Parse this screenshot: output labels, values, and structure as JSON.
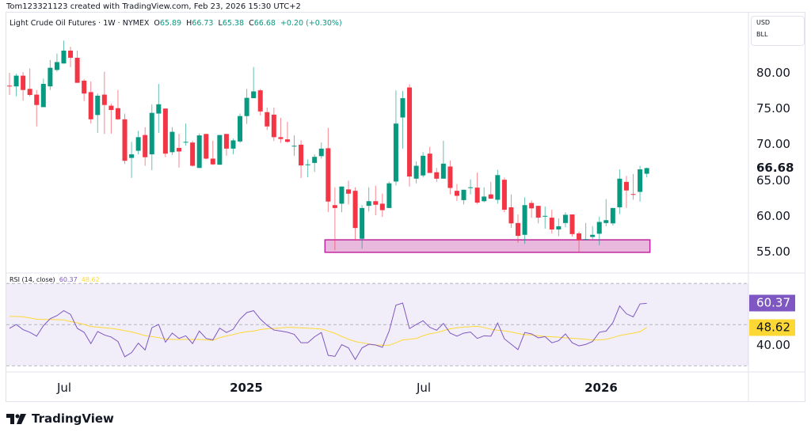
{
  "header": {
    "credit": "Tom123321123 created with TradingView.com, Feb 23, 2026 15:30 UTC+2",
    "symbol": "Light Crude Oil Futures · 1W · NYMEX",
    "o_label": "O",
    "o": "65.89",
    "h_label": "H",
    "h": "66.73",
    "l_label": "L",
    "l": "65.38",
    "c_label": "C",
    "c": "66.68",
    "change": "+0.20 (+0.30%)"
  },
  "unit_box": {
    "currency": "USD",
    "unit": "BLL"
  },
  "logo_text": "TradingView",
  "colors": {
    "up": "#089981",
    "down": "#f23645",
    "rsi": "#7e57c2",
    "rsi_ma": "#fdd835",
    "zone_fill": "#e9b9dd",
    "zone_border": "#c2269e"
  },
  "chart_data": [
    {
      "type": "candlestick",
      "interval": "1W",
      "price_ticks": [
        "80.00",
        "75.00",
        "70.00",
        "65.00",
        "60.00",
        "55.00"
      ],
      "current_price": "66.68",
      "time_labels": [
        "Jul",
        "2025",
        "Jul",
        "2026"
      ],
      "zone": {
        "top": 56.65,
        "bottom": 54.9,
        "from_candle": 48,
        "to_candle": 95
      },
      "ohlc": [
        [
          78.2,
          80,
          76.9,
          78.15
        ],
        [
          78.1,
          79.85,
          76.7,
          79.6
        ],
        [
          79.6,
          80.1,
          76.1,
          77.6
        ],
        [
          77.75,
          80.6,
          76.7,
          76.9
        ],
        [
          76.95,
          77.6,
          72.5,
          75.5
        ],
        [
          75.2,
          79.2,
          75.2,
          78.45
        ],
        [
          78.1,
          81.8,
          77.6,
          80.7
        ],
        [
          80.4,
          82.7,
          80.15,
          81.5
        ],
        [
          81.3,
          84.5,
          81.3,
          83.1
        ],
        [
          83.1,
          83.65,
          80.8,
          82.1
        ],
        [
          82.1,
          83.1,
          78.6,
          78.6
        ],
        [
          78.9,
          79.1,
          76.05,
          77.1
        ],
        [
          77.3,
          78.8,
          72.9,
          73.5
        ],
        [
          74.1,
          77.1,
          71.6,
          76.8
        ],
        [
          76.95,
          80.15,
          71.45,
          75.5
        ],
        [
          75.4,
          75.7,
          71.5,
          74.8
        ],
        [
          75.05,
          77.6,
          73.4,
          73.5
        ],
        [
          73.5,
          74.3,
          67.25,
          67.7
        ],
        [
          68.1,
          70.35,
          65.3,
          68.6
        ],
        [
          69.1,
          71.9,
          68.6,
          71.0
        ],
        [
          71.3,
          72.4,
          67.0,
          68.2
        ],
        [
          68.6,
          75.6,
          66.4,
          74.4
        ],
        [
          74.3,
          78.45,
          71.6,
          75.6
        ],
        [
          75.0,
          75.0,
          68.2,
          68.7
        ],
        [
          68.9,
          72.4,
          68.5,
          71.75
        ],
        [
          69.5,
          71.45,
          66.75,
          69.0
        ],
        [
          70.3,
          72.9,
          69.8,
          70.35
        ],
        [
          70.25,
          70.5,
          66.9,
          67.0
        ],
        [
          66.7,
          71.5,
          66.7,
          71.25
        ],
        [
          71.45,
          71.45,
          67.9,
          68.0
        ],
        [
          68.0,
          70.5,
          67.1,
          67.2
        ],
        [
          67.15,
          71.3,
          67.15,
          71.3
        ],
        [
          71.45,
          71.45,
          68.4,
          69.4
        ],
        [
          69.4,
          70.8,
          68.6,
          70.55
        ],
        [
          70.4,
          74.3,
          70.2,
          73.95
        ],
        [
          73.95,
          77.75,
          72.85,
          76.5
        ],
        [
          76.45,
          80.8,
          76.45,
          77.4
        ],
        [
          77.55,
          77.75,
          74.05,
          74.6
        ],
        [
          74.5,
          75.15,
          72.0,
          72.5
        ],
        [
          74.15,
          75.15,
          70.45,
          71.0
        ],
        [
          71.0,
          73.7,
          70.2,
          70.75
        ],
        [
          70.7,
          73.15,
          70.2,
          70.35
        ],
        [
          69.8,
          71.25,
          68.4,
          69.8
        ],
        [
          69.95,
          70.55,
          65.3,
          67.05
        ],
        [
          67.15,
          67.9,
          65.4,
          67.2
        ],
        [
          67.4,
          68.6,
          66.15,
          68.25
        ],
        [
          68.35,
          70.25,
          68.0,
          69.4
        ],
        [
          69.45,
          72.3,
          60.55,
          62.0
        ],
        [
          61.5,
          64.0,
          55.2,
          61.1
        ],
        [
          61.7,
          64.1,
          60.5,
          64.1
        ],
        [
          63.7,
          64.9,
          61.6,
          63.1
        ],
        [
          63.5,
          64.0,
          56.55,
          58.3
        ],
        [
          56.8,
          61.5,
          55.4,
          61.1
        ],
        [
          61.4,
          64.0,
          60.6,
          62.05
        ],
        [
          62.05,
          64.2,
          60.1,
          61.55
        ],
        [
          61.7,
          63.1,
          59.85,
          60.8
        ],
        [
          61.1,
          64.8,
          61.1,
          64.55
        ],
        [
          64.8,
          77.55,
          64.25,
          72.9
        ],
        [
          73.75,
          77.45,
          69.4,
          76.45
        ],
        [
          77.95,
          78.4,
          64.1,
          65.5
        ],
        [
          65.2,
          67.6,
          64.55,
          67.0
        ],
        [
          65.65,
          68.9,
          65.4,
          68.4
        ],
        [
          68.7,
          69.65,
          66.0,
          66.0
        ],
        [
          66.1,
          66.7,
          64.75,
          65.2
        ],
        [
          65.2,
          70.5,
          65.2,
          67.3
        ],
        [
          66.9,
          67.75,
          63.0,
          63.9
        ],
        [
          63.5,
          64.45,
          62.1,
          62.8
        ],
        [
          62.2,
          63.65,
          61.6,
          63.65
        ],
        [
          63.95,
          65.1,
          63.0,
          64.0
        ],
        [
          63.95,
          66.05,
          61.65,
          61.85
        ],
        [
          62.05,
          64.0,
          61.9,
          62.7
        ],
        [
          63.0,
          64.75,
          62.4,
          62.4
        ],
        [
          62.25,
          66.45,
          61.7,
          65.7
        ],
        [
          65.05,
          65.35,
          60.5,
          60.85
        ],
        [
          61.2,
          63.0,
          58.3,
          58.95
        ],
        [
          59.0,
          60.2,
          56.25,
          57.2
        ],
        [
          57.35,
          62.6,
          56.1,
          61.5
        ],
        [
          61.8,
          62.15,
          59.75,
          61.05
        ],
        [
          61.4,
          61.4,
          58.95,
          59.75
        ],
        [
          59.95,
          61.3,
          58.2,
          60.0
        ],
        [
          59.75,
          60.85,
          57.55,
          58.1
        ],
        [
          58.1,
          59.65,
          57.15,
          58.55
        ],
        [
          59.0,
          60.5,
          58.4,
          60.15
        ],
        [
          60.2,
          60.2,
          57.1,
          57.45
        ],
        [
          57.55,
          57.8,
          55.0,
          56.6
        ],
        [
          56.7,
          59.0,
          56.6,
          56.75
        ],
        [
          57.05,
          58.55,
          56.75,
          57.35
        ],
        [
          57.5,
          59.9,
          55.9,
          59.15
        ],
        [
          59.0,
          62.35,
          58.55,
          59.4
        ],
        [
          58.95,
          61.1,
          58.65,
          61.1
        ],
        [
          61.2,
          66.5,
          60.25,
          65.2
        ],
        [
          64.75,
          65.6,
          61.1,
          63.55
        ],
        [
          63.05,
          65.85,
          62.25,
          62.95
        ],
        [
          63.35,
          67.0,
          62.0,
          66.5
        ],
        [
          65.89,
          66.73,
          65.38,
          66.68
        ]
      ]
    },
    {
      "type": "line",
      "title": "RSI (14, close)",
      "rsi_value": "60.37",
      "ma_value": "48.62",
      "axis_label": "40.00",
      "bands": [
        30,
        50,
        70
      ],
      "series": [
        {
          "values": [
            48.2,
            50.1,
            47.6,
            46.3,
            44.4,
            49.5,
            52.9,
            54.4,
            56.8,
            55.0,
            48.2,
            46.3,
            40.8,
            46.7,
            45.0,
            44.0,
            41.8,
            34.4,
            36.4,
            41.0,
            37.7,
            48.5,
            50.1,
            41.5,
            45.9,
            43.3,
            44.6,
            40.8,
            46.9,
            43.3,
            42.6,
            48.3,
            46.2,
            47.8,
            52.7,
            55.9,
            56.8,
            52.7,
            49.7,
            47.4,
            46.9,
            46.3,
            45.3,
            41.2,
            41.2,
            44.1,
            46.2,
            35.1,
            34.6,
            40.3,
            38.7,
            33.1,
            38.7,
            40.5,
            40.1,
            39.0,
            46.9,
            59.5,
            60.5,
            48.1,
            50.1,
            51.9,
            48.7,
            47.3,
            50.6,
            45.9,
            44.4,
            45.9,
            46.4,
            43.3,
            44.6,
            44.4,
            50.8,
            43.1,
            40.5,
            37.9,
            46.2,
            45.5,
            43.6,
            44.2,
            41.2,
            42.2,
            45.5,
            41.2,
            39.7,
            40.4,
            41.8,
            46.3,
            46.9,
            51.0,
            59.1,
            55.3,
            53.8,
            60.1,
            60.37
          ]
        },
        {
          "values": [
            54.0,
            54.0,
            53.8,
            53.3,
            52.6,
            52.5,
            52.5,
            52.4,
            52.3,
            51.5,
            50.9,
            50.1,
            49.1,
            48.8,
            48.5,
            48.2,
            47.7,
            47.1,
            46.5,
            45.6,
            44.7,
            44.2,
            43.7,
            43.0,
            42.8,
            42.8,
            42.8,
            42.8,
            42.8,
            42.6,
            42.4,
            43.7,
            44.5,
            45.2,
            46.0,
            46.6,
            46.9,
            47.6,
            48.0,
            48.2,
            48.4,
            48.7,
            48.6,
            48.5,
            48.3,
            48.1,
            47.9,
            46.9,
            45.8,
            44.3,
            42.9,
            41.8,
            41.2,
            40.6,
            40.1,
            40.0,
            40.0,
            41.2,
            42.6,
            42.9,
            43.3,
            44.6,
            45.6,
            46.1,
            47.1,
            48.0,
            48.5,
            48.8,
            49.0,
            49.2,
            48.6,
            47.8,
            47.3,
            47.0,
            46.4,
            45.7,
            45.1,
            45.0,
            44.6,
            44.3,
            44.1,
            43.9,
            43.6,
            43.4,
            43.2,
            42.9,
            42.5,
            42.6,
            42.9,
            43.7,
            44.7,
            45.3,
            45.9,
            46.6,
            48.62
          ]
        }
      ]
    }
  ]
}
